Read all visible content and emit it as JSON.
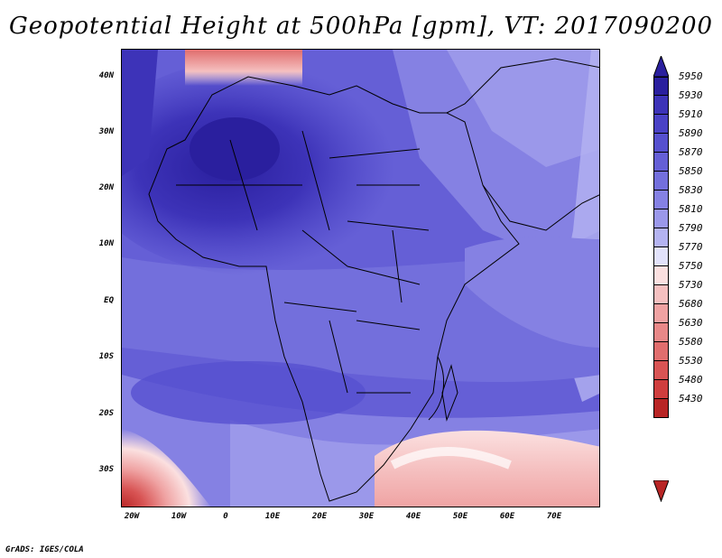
{
  "title": "Geopotential Height at 500hPa [gpm], VT: 2017090200",
  "credit": "GrADS: IGES/COLA",
  "latitude_labels": [
    "40N",
    "30N",
    "20N",
    "10N",
    "EQ",
    "10S",
    "20S",
    "30S"
  ],
  "longitude_labels": [
    "20W",
    "10W",
    "0",
    "10E",
    "20E",
    "30E",
    "40E",
    "50E",
    "60E",
    "70E"
  ],
  "colorbar": {
    "levels": [
      "5950",
      "5930",
      "5910",
      "5890",
      "5870",
      "5850",
      "5830",
      "5810",
      "5790",
      "5770",
      "5750",
      "5730",
      "5680",
      "5630",
      "5580",
      "5530",
      "5480",
      "5430"
    ],
    "colors": [
      "#2a1f9e",
      "#3d33b8",
      "#4a42c6",
      "#5650cf",
      "#655fd6",
      "#736fdc",
      "#8581e3",
      "#9b98ea",
      "#b4b3f1",
      "#e2e2fb",
      "#fbe0e0",
      "#f5c0c0",
      "#efa2a2",
      "#e88888",
      "#e06d6d",
      "#d85454",
      "#cf3e3e",
      "#b82525"
    ]
  }
}
